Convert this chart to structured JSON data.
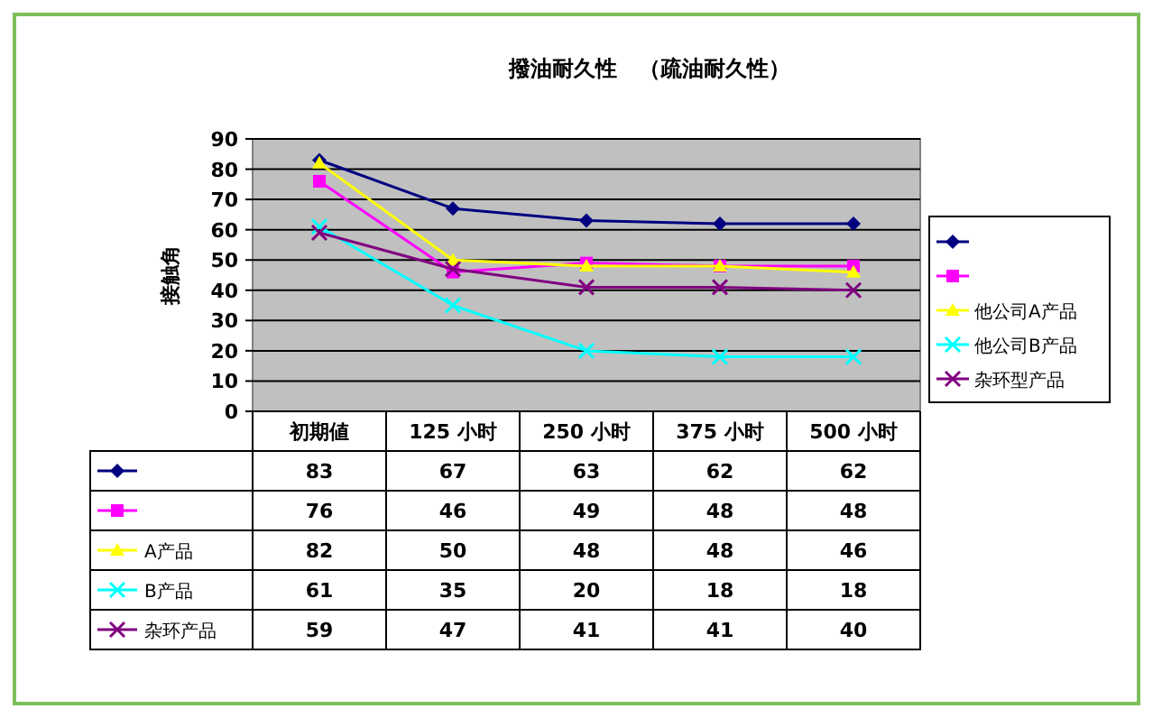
{
  "chart_data": {
    "type": "line",
    "title": "撥油耐久性　（疏油耐久性）",
    "ylabel": "接触角",
    "categories": [
      "初期値",
      "125 小时",
      "250 小时",
      "375 小时",
      "500 小时"
    ],
    "ylim": [
      0,
      90
    ],
    "yticks": [
      0,
      10,
      20,
      30,
      40,
      50,
      60,
      70,
      80,
      90
    ],
    "grid": "y",
    "legend": "right",
    "data_labels": true,
    "series": [
      {
        "color": "#000080",
        "marker": "diamond",
        "values": [
          83,
          67,
          63,
          62,
          62
        ]
      },
      {
        "color": "#ff00ff",
        "marker": "square",
        "values": [
          76,
          46,
          49,
          48,
          48
        ]
      },
      {
        "name": "他公司A产品",
        "color": "#ffff00",
        "marker": "triangle",
        "values": [
          82,
          50,
          48,
          48,
          46
        ]
      },
      {
        "name": "他公司B产品",
        "color": "#00ffff",
        "marker": "cross",
        "values": [
          61,
          35,
          20,
          18,
          18
        ]
      },
      {
        "name": "杂环型产品",
        "color": "#800080",
        "marker": "cross",
        "values": [
          59,
          47,
          41,
          41,
          40
        ]
      }
    ],
    "annotations": [
      "A产品",
      "B产品",
      "杂环产品"
    ]
  }
}
